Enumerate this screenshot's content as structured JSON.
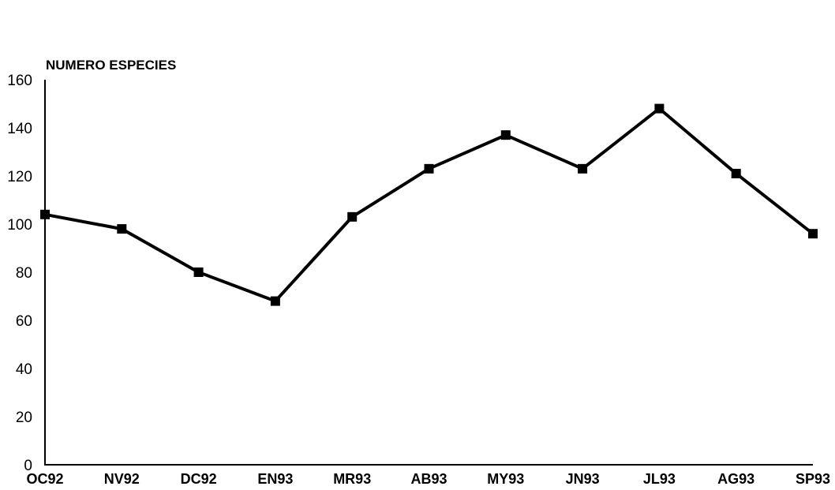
{
  "chart_data": {
    "type": "line",
    "ylabel": "NUMERO ESPECIES",
    "xlabel": "",
    "ylim": [
      0,
      160
    ],
    "yticks": [
      0,
      20,
      40,
      60,
      80,
      100,
      120,
      140,
      160
    ],
    "categories": [
      "OC92",
      "NV92",
      "DC92",
      "EN93",
      "MR93",
      "AB93",
      "MY93",
      "JN93",
      "JL93",
      "AG93",
      "SP93"
    ],
    "series": [
      {
        "values": [
          104,
          98,
          80,
          68,
          103,
          123,
          137,
          123,
          148,
          121,
          96
        ]
      }
    ],
    "grid": false,
    "legend": "none",
    "colors": {
      "line": "#000000",
      "marker": "#000000"
    }
  }
}
